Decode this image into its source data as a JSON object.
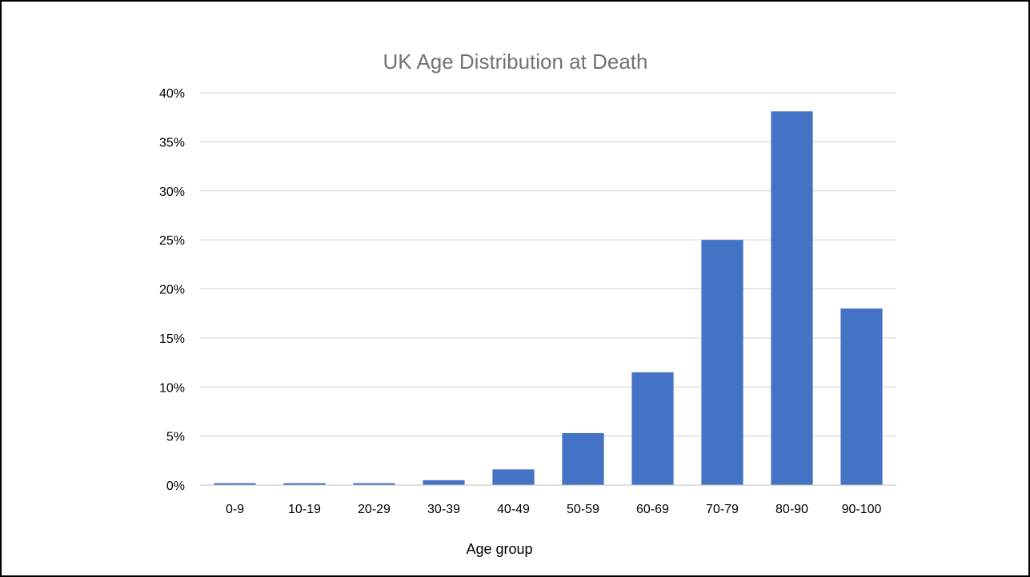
{
  "chart_data": {
    "type": "bar",
    "title": "UK Age Distribution at Death",
    "xlabel": "Age group",
    "ylabel": "",
    "categories": [
      "0-9",
      "10-19",
      "20-29",
      "30-39",
      "40-49",
      "50-59",
      "60-69",
      "70-79",
      "80-90",
      "90-100"
    ],
    "values": [
      0.2,
      0.2,
      0.2,
      0.5,
      1.6,
      5.3,
      11.5,
      25.0,
      38.1,
      18.0
    ],
    "value_unit": "%",
    "ylim": [
      0,
      40
    ],
    "yticks": [
      0,
      5,
      10,
      15,
      20,
      25,
      30,
      35,
      40
    ],
    "ytick_labels": [
      "0%",
      "5%",
      "10%",
      "15%",
      "20%",
      "25%",
      "30%",
      "35%",
      "40%"
    ],
    "grid": true,
    "legend": "none",
    "bar_color": "#4472c4"
  }
}
